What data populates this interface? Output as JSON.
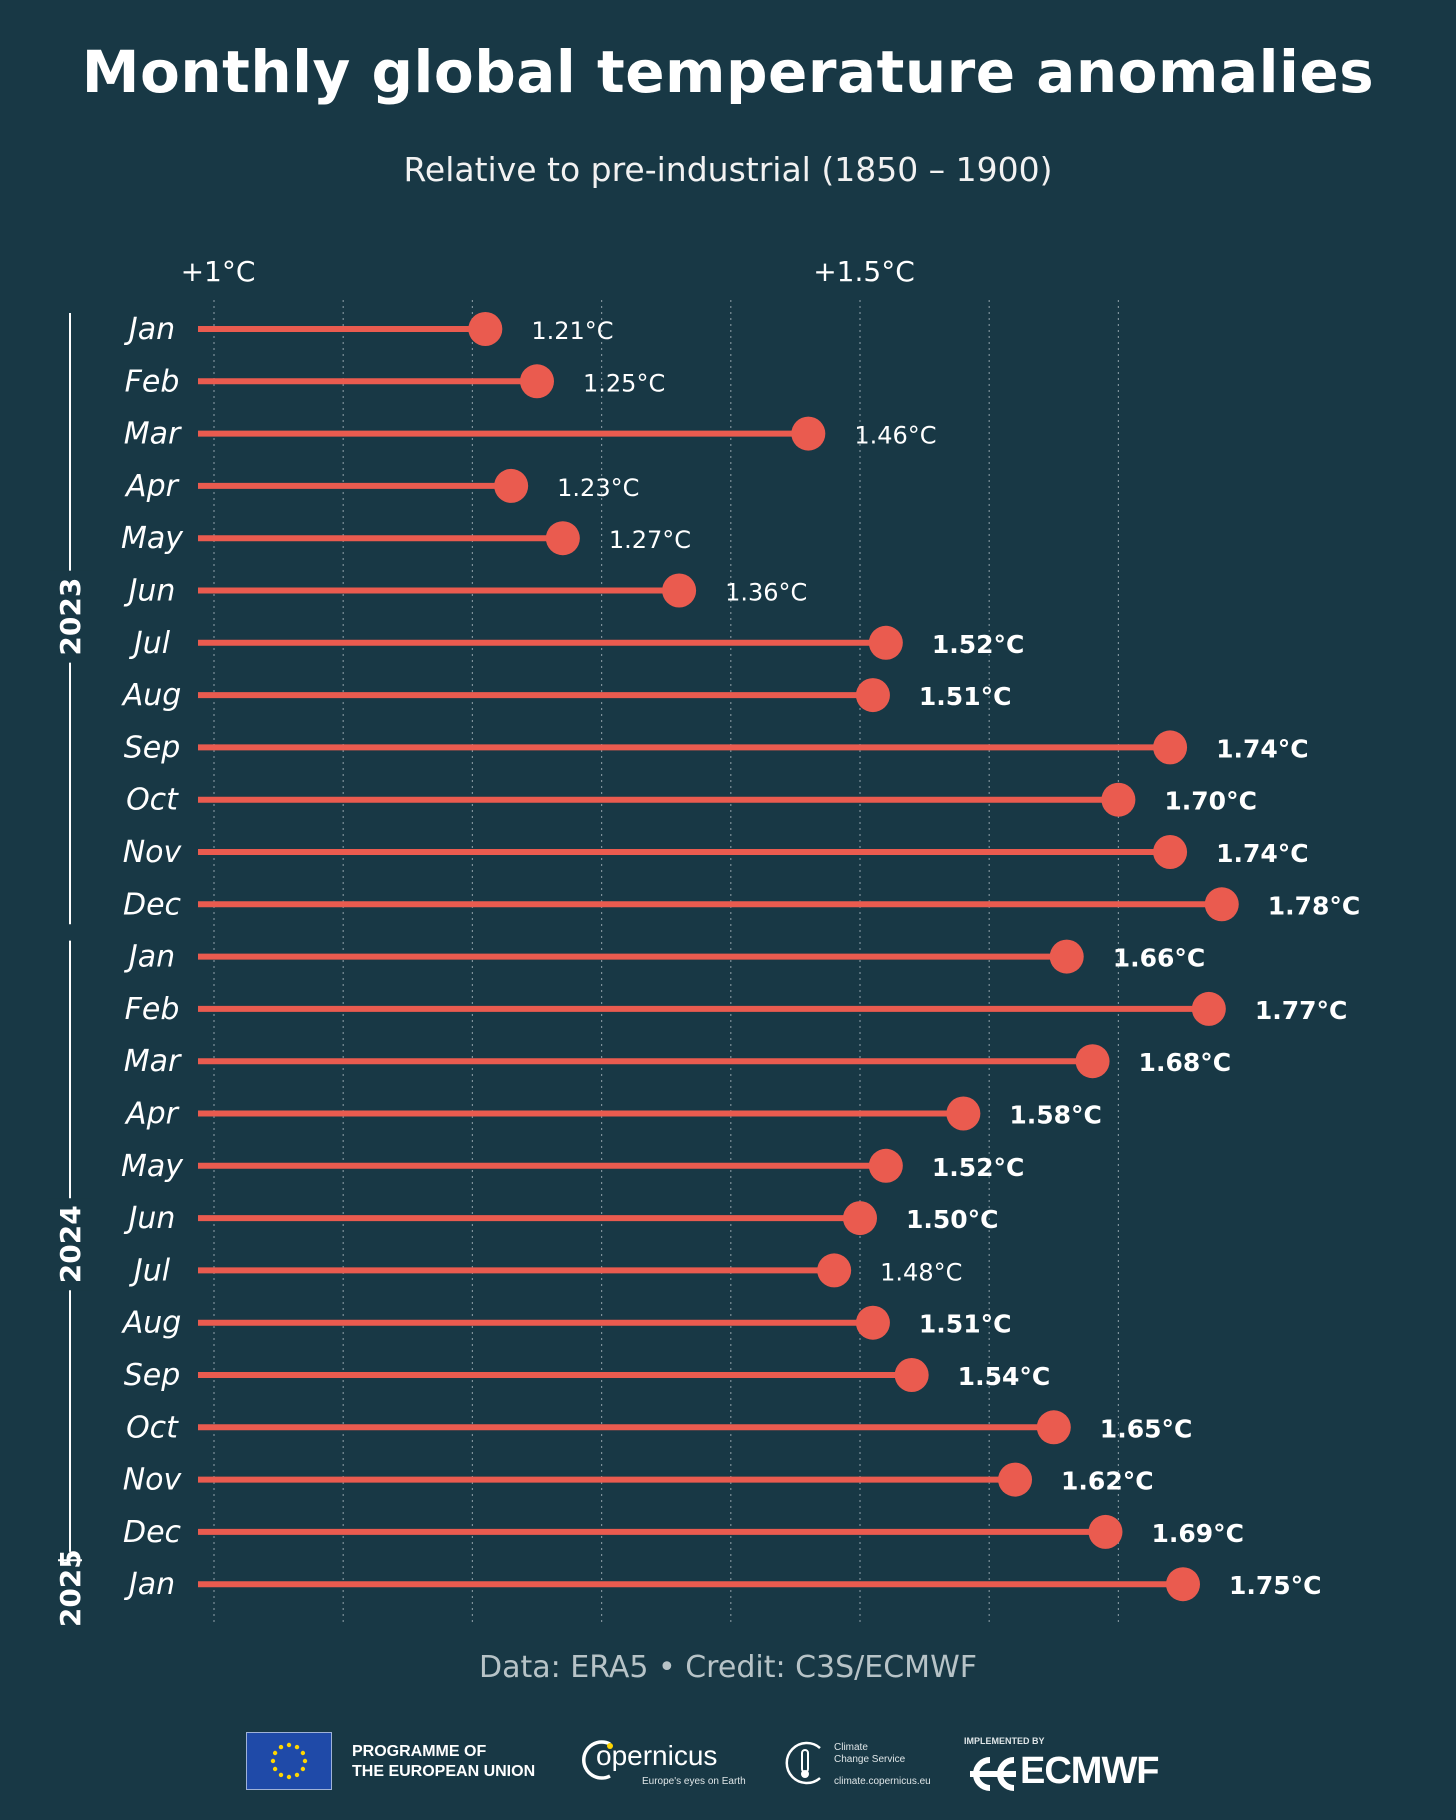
{
  "header": {
    "title": "Monthly global temperature anomalies",
    "subtitle": "Relative to pre-industrial (1850 – 1900)"
  },
  "chart_data": {
    "type": "lollipop",
    "orientation": "horizontal",
    "xlim": [
      0.99,
      1.88
    ],
    "x_tick_labels": [
      {
        "value": 1.0,
        "label": "+1°C"
      },
      {
        "value": 1.5,
        "label": "+1.5°C"
      }
    ],
    "gridline_values": [
      1.0,
      1.1,
      1.2,
      1.3,
      1.4,
      1.5,
      1.6,
      1.7
    ],
    "bold_label_threshold": 1.5,
    "colors": {
      "background": "#183845",
      "lollipop": "#ea5b4f",
      "text": "#ffffff",
      "grid": "#7d9099"
    },
    "years": [
      {
        "label": "2023",
        "months": 12
      },
      {
        "label": "2024",
        "months": 12
      },
      {
        "label": "2025",
        "months": 1
      }
    ],
    "categories": [
      "Jan",
      "Feb",
      "Mar",
      "Apr",
      "May",
      "Jun",
      "Jul",
      "Aug",
      "Sep",
      "Oct",
      "Nov",
      "Dec",
      "Jan",
      "Feb",
      "Mar",
      "Apr",
      "May",
      "Jun",
      "Jul",
      "Aug",
      "Sep",
      "Oct",
      "Nov",
      "Dec",
      "Jan"
    ],
    "values": [
      1.21,
      1.25,
      1.46,
      1.23,
      1.27,
      1.36,
      1.52,
      1.51,
      1.74,
      1.7,
      1.74,
      1.78,
      1.66,
      1.77,
      1.68,
      1.58,
      1.52,
      1.5,
      1.48,
      1.51,
      1.54,
      1.65,
      1.62,
      1.69,
      1.75
    ],
    "value_labels": [
      "1.21°C",
      "1.25°C",
      "1.46°C",
      "1.23°C",
      "1.27°C",
      "1.36°C",
      "1.52°C",
      "1.51°C",
      "1.74°C",
      "1.70°C",
      "1.74°C",
      "1.78°C",
      "1.66°C",
      "1.77°C",
      "1.68°C",
      "1.58°C",
      "1.52°C",
      "1.50°C",
      "1.48°C",
      "1.51°C",
      "1.54°C",
      "1.65°C",
      "1.62°C",
      "1.69°C",
      "1.75°C"
    ]
  },
  "credit": "Data: ERA5 • Credit: C3S/ECMWF",
  "footer": {
    "eu_line1": "PROGRAMME OF",
    "eu_line2": "THE EUROPEAN UNION",
    "copernicus_name": "opernicus",
    "copernicus_tagline": "Europe's eyes on Earth",
    "c3s_name_line1": "Climate",
    "c3s_name_line2": "Change Service",
    "c3s_url": "climate.copernicus.eu",
    "ecmwf_implemented": "IMPLEMENTED BY",
    "ecmwf_name": "ECMWF"
  },
  "icons": {
    "eu_flag": "eu-flag-icon",
    "copernicus": "copernicus-logo-icon",
    "c3s": "c3s-logo-icon",
    "ecmwf": "ecmwf-logo-icon"
  }
}
